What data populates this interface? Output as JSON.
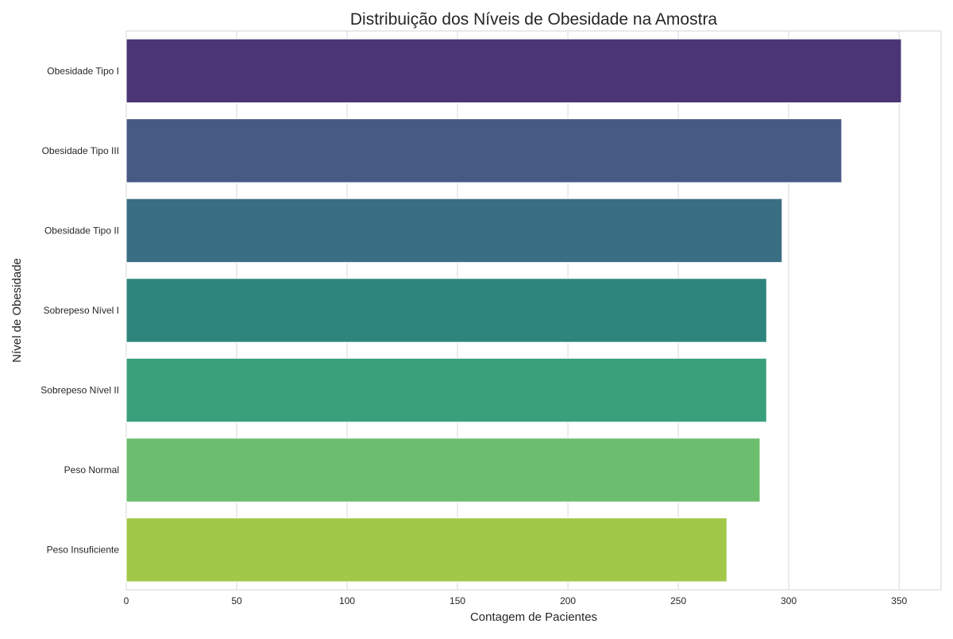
{
  "chart_data": {
    "type": "bar",
    "orientation": "horizontal",
    "title": "Distribuição dos Níveis de Obesidade na Amostra",
    "xlabel": "Contagem de Pacientes",
    "ylabel": "Nível de Obesidade",
    "categories": [
      "Obesidade Tipo I",
      "Obesidade Tipo III",
      "Obesidade Tipo II",
      "Sobrepeso Nível I",
      "Sobrepeso Nível II",
      "Peso Normal",
      "Peso Insuficiente"
    ],
    "values": [
      351,
      324,
      297,
      290,
      290,
      287,
      272
    ],
    "colors": [
      "#4b3575",
      "#475a84",
      "#3a6e82",
      "#2e857d",
      "#3aa07c",
      "#6cbd6d",
      "#a2c84a"
    ],
    "xlim": [
      0,
      369
    ],
    "xticks": [
      0,
      50,
      100,
      150,
      200,
      250,
      300,
      350
    ],
    "xtick_labels": [
      "0",
      "50",
      "100",
      "150",
      "200",
      "250",
      "300",
      "350"
    ],
    "grid": true,
    "grid_axis": "x",
    "legend": "none"
  }
}
